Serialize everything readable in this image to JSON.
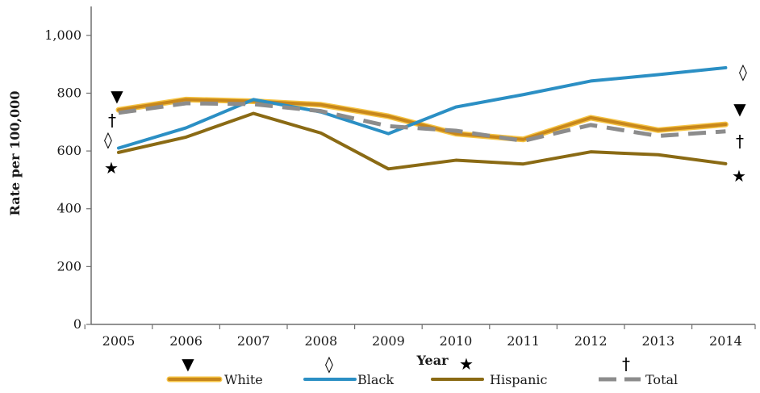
{
  "chart_data": {
    "type": "line",
    "title": "",
    "xlabel": "Year",
    "ylabel": "Rate per 100,000",
    "categories": [
      "2005",
      "2006",
      "2007",
      "2008",
      "2009",
      "2010",
      "2011",
      "2012",
      "2013",
      "2014"
    ],
    "yticks": [
      "0",
      "200",
      "400",
      "600",
      "800",
      "1,000"
    ],
    "ylim": [
      0,
      1100
    ],
    "grid": false,
    "legend_position": "bottom",
    "series": [
      {
        "name": "White",
        "marker": "▼",
        "color": "#c8871b",
        "color2": "#f5c342",
        "dash": false,
        "values": [
          742,
          778,
          772,
          760,
          720,
          660,
          640,
          715,
          672,
          692
        ]
      },
      {
        "name": "Black",
        "marker": "◊",
        "color": "#2b8fc4",
        "dash": false,
        "values": [
          610,
          680,
          778,
          735,
          660,
          752,
          795,
          842,
          864,
          888
        ]
      },
      {
        "name": "Hispanic",
        "marker": "★",
        "color": "#8a6a14",
        "dash": false,
        "values": [
          595,
          648,
          730,
          662,
          538,
          568,
          555,
          597,
          587,
          556
        ]
      },
      {
        "name": "Total",
        "marker": "†",
        "color": "#8c8c8c",
        "dash": true,
        "values": [
          732,
          765,
          762,
          738,
          686,
          670,
          635,
          690,
          652,
          668
        ]
      }
    ]
  }
}
